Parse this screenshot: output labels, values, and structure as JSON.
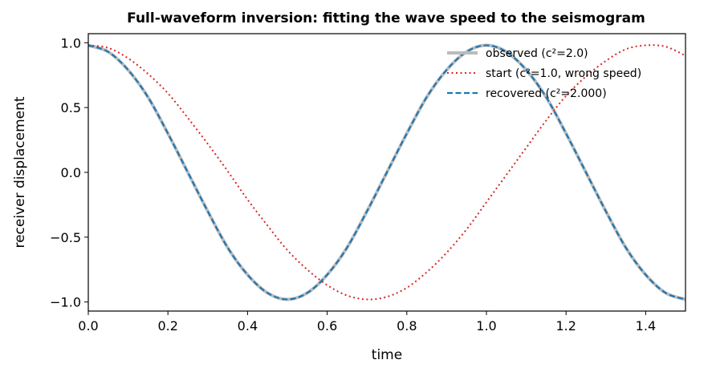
{
  "chart_data": {
    "type": "line",
    "title": "Full-waveform inversion: fitting the wave speed to the seismogram",
    "xlabel": "time",
    "ylabel": "receiver displacement",
    "xlim": [
      0.0,
      1.5
    ],
    "ylim": [
      -1.07,
      1.07
    ],
    "xticks": [
      0.0,
      0.2,
      0.4,
      0.6,
      0.8,
      1.0,
      1.2,
      1.4
    ],
    "xtick_labels": [
      "0.0",
      "0.2",
      "0.4",
      "0.6",
      "0.8",
      "1.0",
      "1.2",
      "1.4"
    ],
    "yticks": [
      1.0,
      0.5,
      0.0,
      -0.5,
      -1.0
    ],
    "ytick_labels": [
      "1.0",
      "0.5",
      "0.0",
      "−0.5",
      "−1.0"
    ],
    "grid": false,
    "legend_position": "top-right",
    "series": [
      {
        "name": "observed (c²=2.0)",
        "color": "#bbbbbb",
        "style": "solid",
        "x": [
          0.0,
          0.05,
          0.1,
          0.15,
          0.2,
          0.25,
          0.3,
          0.35,
          0.4,
          0.45,
          0.5,
          0.55,
          0.6,
          0.65,
          0.7,
          0.75,
          0.8,
          0.85,
          0.9,
          0.95,
          1.0,
          1.05,
          1.1,
          1.15,
          1.2,
          1.25,
          1.3,
          1.35,
          1.4,
          1.45,
          1.5
        ],
        "y": [
          0.98,
          0.93,
          0.79,
          0.58,
          0.3,
          0.0,
          -0.3,
          -0.58,
          -0.79,
          -0.93,
          -0.98,
          -0.93,
          -0.79,
          -0.58,
          -0.3,
          0.0,
          0.3,
          0.58,
          0.79,
          0.93,
          0.98,
          0.93,
          0.79,
          0.58,
          0.3,
          0.0,
          -0.3,
          -0.58,
          -0.79,
          -0.93,
          -0.98
        ]
      },
      {
        "name": "start (c²=1.0, wrong speed)",
        "color": "#d62728",
        "style": "dotted",
        "x": [
          0.0,
          0.05,
          0.1,
          0.15,
          0.2,
          0.25,
          0.3,
          0.35,
          0.4,
          0.45,
          0.5,
          0.55,
          0.6,
          0.65,
          0.7,
          0.75,
          0.8,
          0.85,
          0.9,
          0.95,
          1.0,
          1.05,
          1.1,
          1.15,
          1.2,
          1.25,
          1.3,
          1.35,
          1.4,
          1.45,
          1.5
        ],
        "y": [
          0.98,
          0.96,
          0.88,
          0.76,
          0.61,
          0.42,
          0.22,
          0.01,
          -0.21,
          -0.41,
          -0.6,
          -0.75,
          -0.87,
          -0.95,
          -0.98,
          -0.96,
          -0.89,
          -0.77,
          -0.62,
          -0.44,
          -0.23,
          -0.02,
          0.19,
          0.4,
          0.59,
          0.74,
          0.86,
          0.95,
          0.98,
          0.97,
          0.9
        ]
      },
      {
        "name": "recovered (c²=2.000)",
        "color": "#1f77b4",
        "style": "dashed",
        "x": [
          0.0,
          0.05,
          0.1,
          0.15,
          0.2,
          0.25,
          0.3,
          0.35,
          0.4,
          0.45,
          0.5,
          0.55,
          0.6,
          0.65,
          0.7,
          0.75,
          0.8,
          0.85,
          0.9,
          0.95,
          1.0,
          1.05,
          1.1,
          1.15,
          1.2,
          1.25,
          1.3,
          1.35,
          1.4,
          1.45,
          1.5
        ],
        "y": [
          0.98,
          0.93,
          0.79,
          0.58,
          0.3,
          0.0,
          -0.3,
          -0.58,
          -0.79,
          -0.93,
          -0.98,
          -0.93,
          -0.79,
          -0.58,
          -0.3,
          0.0,
          0.3,
          0.58,
          0.79,
          0.93,
          0.98,
          0.93,
          0.79,
          0.58,
          0.3,
          0.0,
          -0.3,
          -0.58,
          -0.79,
          -0.93,
          -0.98
        ]
      }
    ]
  }
}
